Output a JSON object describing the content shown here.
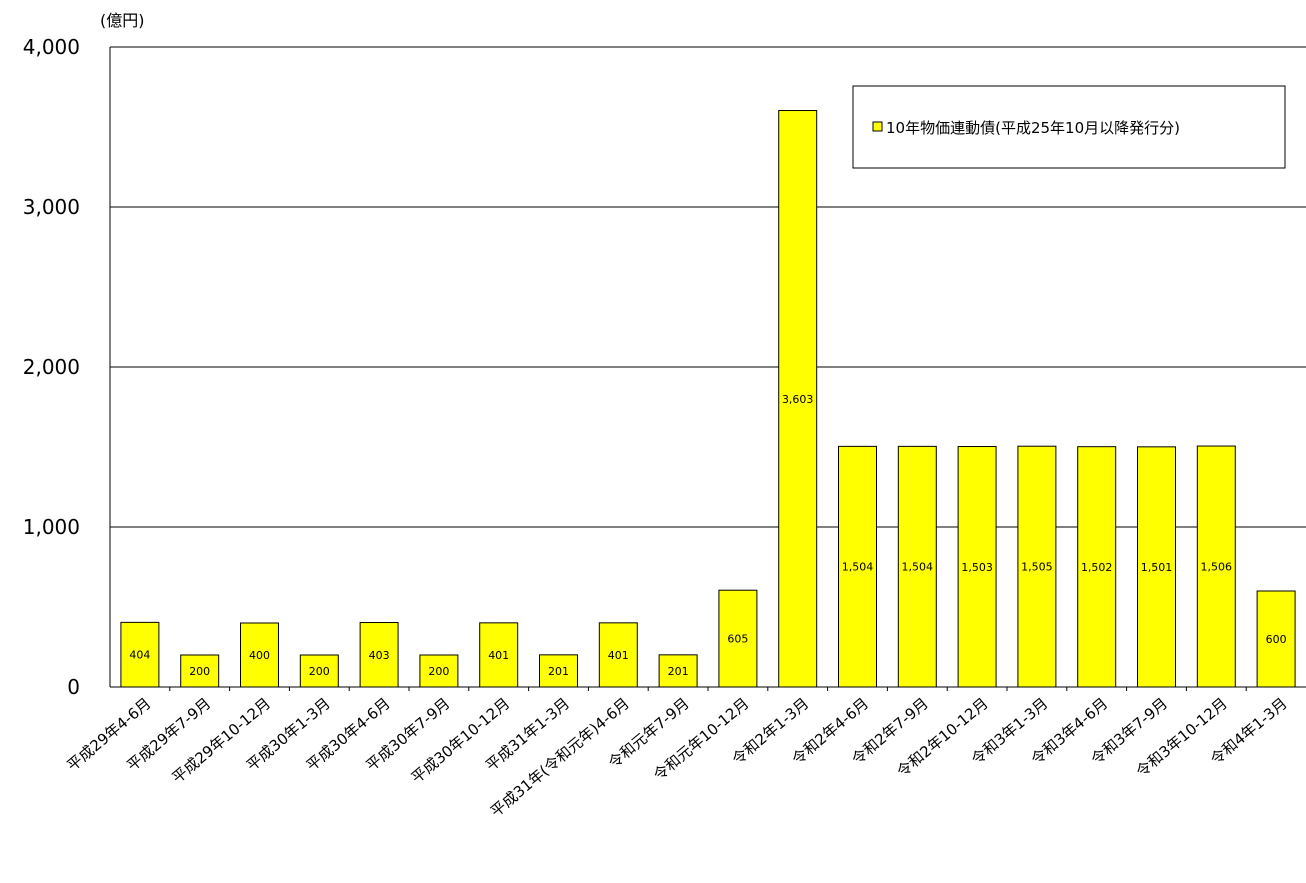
{
  "chart_data": {
    "type": "bar",
    "unit_label": "(億円)",
    "ylim": [
      0,
      4000
    ],
    "yticks": [
      0,
      1000,
      2000,
      3000,
      4000
    ],
    "ytick_labels": [
      "0",
      "1,000",
      "2,000",
      "3,000",
      "4,000"
    ],
    "grid": true,
    "legend_position": "top-right",
    "bar_color": "#ffff00",
    "categories": [
      "平成29年4-6月",
      "平成29年7-9月",
      "平成29年10-12月",
      "平成30年1-3月",
      "平成30年4-6月",
      "平成30年7-9月",
      "平成30年10-12月",
      "平成31年1-3月",
      "平成31年(令和元年)4-6月",
      "令和元年7-9月",
      "令和元年10-12月",
      "令和2年1-3月",
      "令和2年4-6月",
      "令和2年7-9月",
      "令和2年10-12月",
      "令和3年1-3月",
      "令和3年4-6月",
      "令和3年7-9月",
      "令和3年10-12月",
      "令和4年1-3月"
    ],
    "series": [
      {
        "name": "10年物価連動債(平成25年10月以降発行分)",
        "values": [
          404,
          200,
          400,
          200,
          403,
          200,
          401,
          201,
          401,
          201,
          605,
          3603,
          1504,
          1504,
          1503,
          1505,
          1502,
          1501,
          1506,
          600
        ],
        "value_labels": [
          "404",
          "200",
          "400",
          "200",
          "403",
          "200",
          "401",
          "201",
          "401",
          "201",
          "605",
          "3,603",
          "1,504",
          "1,504",
          "1,503",
          "1,505",
          "1,502",
          "1,501",
          "1,506",
          "600"
        ]
      }
    ]
  }
}
